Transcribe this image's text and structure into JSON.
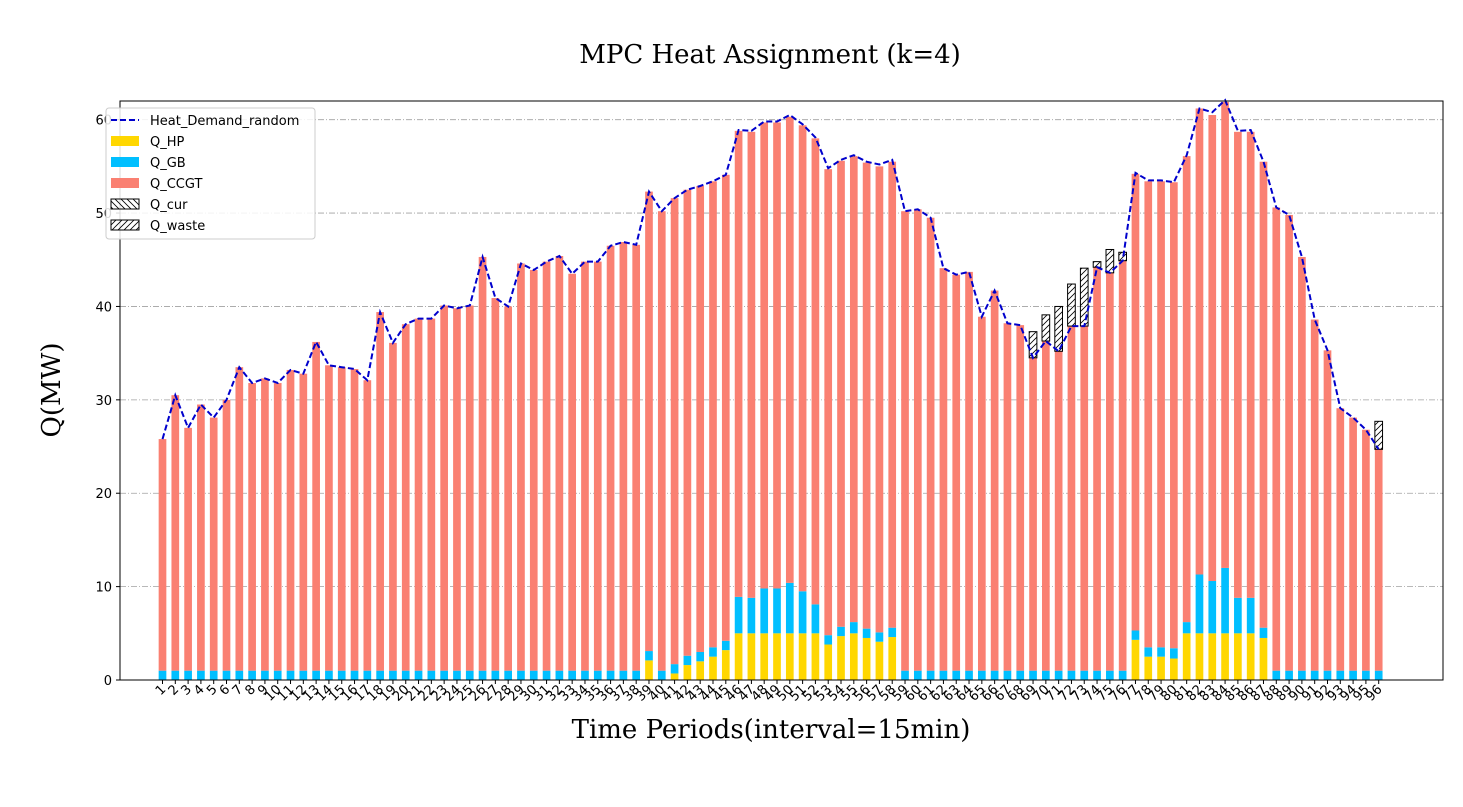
{
  "chart_data": {
    "type": "bar",
    "title": "MPC Heat Assignment (k=4)",
    "xlabel": "Time Periods(interval=15min)",
    "ylabel": "Q(MW)",
    "ylim": [
      0,
      62
    ],
    "yticks": [
      0,
      10,
      20,
      30,
      40,
      50,
      60
    ],
    "grid": true,
    "legend_position": "top-left",
    "categories": [
      "1",
      "2",
      "3",
      "4",
      "5",
      "6",
      "7",
      "8",
      "9",
      "10",
      "11",
      "12",
      "13",
      "14",
      "15",
      "16",
      "17",
      "18",
      "19",
      "20",
      "21",
      "22",
      "23",
      "24",
      "25",
      "26",
      "27",
      "28",
      "29",
      "30",
      "31",
      "32",
      "33",
      "34",
      "35",
      "36",
      "37",
      "38",
      "39",
      "40",
      "41",
      "42",
      "43",
      "44",
      "45",
      "46",
      "47",
      "48",
      "49",
      "50",
      "51",
      "52",
      "53",
      "54",
      "55",
      "56",
      "57",
      "58",
      "59",
      "60",
      "61",
      "62",
      "63",
      "64",
      "65",
      "66",
      "67",
      "68",
      "69",
      "70",
      "71",
      "72",
      "73",
      "74",
      "75",
      "76",
      "77",
      "78",
      "79",
      "80",
      "81",
      "82",
      "83",
      "84",
      "85",
      "86",
      "87",
      "88",
      "89",
      "90",
      "91",
      "92",
      "93",
      "94",
      "95",
      "96"
    ],
    "series": [
      {
        "name": "Heat_Demand_random",
        "kind": "line",
        "color": "#0000cc",
        "values": [
          25.8,
          30.5,
          27.0,
          29.5,
          28.1,
          30.0,
          33.5,
          31.8,
          32.3,
          31.8,
          33.2,
          32.8,
          36.2,
          33.7,
          33.5,
          33.3,
          32.1,
          39.4,
          36.1,
          38.1,
          38.7,
          38.7,
          40.1,
          39.8,
          40.1,
          45.3,
          40.9,
          40.0,
          44.6,
          43.9,
          44.8,
          45.4,
          43.5,
          44.8,
          44.8,
          46.5,
          46.9,
          46.6,
          52.3,
          50.2,
          51.6,
          52.5,
          52.9,
          53.4,
          54.1,
          58.9,
          58.8,
          59.8,
          59.8,
          60.5,
          59.5,
          58.1,
          54.8,
          55.7,
          56.2,
          55.5,
          55.2,
          55.7,
          50.2,
          50.4,
          49.5,
          44.1,
          43.4,
          43.7,
          38.9,
          41.7,
          38.2,
          38.0,
          34.5,
          36.3,
          35.2,
          37.9,
          37.9,
          44.2,
          43.6,
          44.9,
          54.3,
          53.5,
          53.5,
          53.3,
          56.2,
          61.2,
          60.8,
          62.1,
          58.8,
          58.9,
          55.5,
          50.6,
          49.8,
          45.3,
          38.6,
          35.3,
          29.1,
          28.1,
          26.8,
          24.7
        ]
      },
      {
        "name": "Q_HP",
        "kind": "bar",
        "color": "#ffd700",
        "values": [
          0,
          0,
          0,
          0,
          0,
          0,
          0,
          0,
          0,
          0,
          0,
          0,
          0,
          0,
          0,
          0,
          0,
          0,
          0,
          0,
          0,
          0,
          0,
          0,
          0,
          0,
          0,
          0,
          0,
          0,
          0,
          0,
          0,
          0,
          0,
          0,
          0,
          0,
          2.1,
          0,
          0.7,
          1.6,
          2.0,
          2.5,
          3.2,
          5.0,
          5.0,
          5.0,
          5.0,
          5.0,
          5.0,
          5.0,
          3.8,
          4.7,
          5.0,
          4.5,
          4.1,
          4.6,
          0,
          0,
          0,
          0,
          0,
          0,
          0,
          0,
          0,
          0,
          0,
          0,
          0,
          0,
          0,
          0,
          0,
          0,
          4.3,
          2.5,
          2.5,
          2.3,
          5.0,
          5.0,
          5.0,
          5.0,
          5.0,
          5.0,
          4.5,
          0,
          0,
          0,
          0,
          0,
          0,
          0,
          0,
          0
        ]
      },
      {
        "name": "Q_GB",
        "kind": "bar",
        "color": "#00bfff",
        "values": [
          1,
          1,
          1,
          1,
          1,
          1,
          1,
          1,
          1,
          1,
          1,
          1,
          1,
          1,
          1,
          1,
          1,
          1,
          1,
          1,
          1,
          1,
          1,
          1,
          1,
          1,
          1,
          1,
          1,
          1,
          1,
          1,
          1,
          1,
          1,
          1,
          1,
          1,
          1.0,
          1,
          1.0,
          1.0,
          1.0,
          1.0,
          1.0,
          3.9,
          3.8,
          4.8,
          4.8,
          5.4,
          4.5,
          3.1,
          1.0,
          1.0,
          1.2,
          1.0,
          1.0,
          1.0,
          1,
          1,
          1,
          1,
          1,
          1,
          1,
          1,
          1,
          1,
          1,
          1,
          1,
          1,
          1,
          1,
          1,
          1,
          1.0,
          1.0,
          1.0,
          1.1,
          1.2,
          6.3,
          5.6,
          7.0,
          3.8,
          3.8,
          1.1,
          1,
          1,
          1,
          1,
          1,
          1,
          1,
          1,
          1
        ]
      },
      {
        "name": "Q_CCGT",
        "kind": "bar",
        "color": "#fa8072",
        "values": [
          24.8,
          29.5,
          26.0,
          28.5,
          27.1,
          29.0,
          32.5,
          30.8,
          31.3,
          30.8,
          32.2,
          31.8,
          35.2,
          32.7,
          32.5,
          32.3,
          31.1,
          38.4,
          35.1,
          37.1,
          37.7,
          37.7,
          39.1,
          38.8,
          39.1,
          44.3,
          39.9,
          39.0,
          43.6,
          42.9,
          43.8,
          44.4,
          42.5,
          43.8,
          43.8,
          45.5,
          45.9,
          45.6,
          49.2,
          49.2,
          49.9,
          49.9,
          49.9,
          49.9,
          49.9,
          49.9,
          49.9,
          49.9,
          49.9,
          49.9,
          49.9,
          49.9,
          49.9,
          49.9,
          49.9,
          49.9,
          49.9,
          49.9,
          49.2,
          49.4,
          48.5,
          43.1,
          42.4,
          42.7,
          37.9,
          40.7,
          37.2,
          37.0,
          33.5,
          35.3,
          34.2,
          36.9,
          36.9,
          43.2,
          42.6,
          43.9,
          48.9,
          49.9,
          49.9,
          49.9,
          49.9,
          49.9,
          49.9,
          49.9,
          49.9,
          49.9,
          49.9,
          49.6,
          48.8,
          44.3,
          37.6,
          34.3,
          28.1,
          27.1,
          25.8,
          23.7
        ]
      },
      {
        "name": "Q_cur",
        "kind": "bar",
        "hatch": "\\\\",
        "color": "#000000",
        "values": [
          0,
          0,
          0,
          0,
          0,
          0,
          0,
          0,
          0,
          0,
          0,
          0,
          0,
          0,
          0,
          0,
          0,
          0,
          0,
          0,
          0,
          0,
          0,
          0,
          0,
          0,
          0,
          0,
          0,
          0,
          0,
          0,
          0,
          0,
          0,
          0,
          0,
          0,
          0,
          0,
          0,
          0,
          0,
          0,
          0,
          0,
          0,
          0,
          0,
          0,
          0,
          0,
          0,
          0,
          0,
          0,
          0,
          0,
          0,
          0,
          0,
          0,
          0,
          0,
          0,
          0,
          0,
          0,
          0,
          0,
          0,
          0,
          0,
          0,
          0,
          0,
          0,
          0,
          0,
          0,
          0,
          0,
          0,
          0,
          0,
          0,
          0,
          0,
          0,
          0,
          0,
          0,
          0,
          0,
          0,
          0
        ]
      },
      {
        "name": "Q_waste",
        "kind": "bar",
        "hatch": "//",
        "color": "#000000",
        "values": [
          0,
          0,
          0,
          0,
          0,
          0,
          0,
          0,
          0,
          0,
          0,
          0,
          0,
          0,
          0,
          0,
          0,
          0,
          0,
          0,
          0,
          0,
          0,
          0,
          0,
          0,
          0,
          0,
          0,
          0,
          0,
          0,
          0,
          0,
          0,
          0,
          0,
          0,
          0,
          0,
          0,
          0,
          0,
          0,
          0,
          0,
          0,
          0,
          0,
          0,
          0,
          0,
          0,
          0,
          0,
          0,
          0,
          0,
          0,
          0,
          0,
          0,
          0,
          0,
          0,
          0,
          0,
          0,
          2.8,
          2.8,
          4.8,
          4.5,
          6.2,
          0.6,
          2.5,
          0.9,
          0,
          0,
          0,
          0,
          0,
          0,
          0,
          0,
          0,
          0,
          0,
          0,
          0,
          0,
          0,
          0,
          0,
          0,
          0,
          3.0
        ]
      }
    ]
  }
}
